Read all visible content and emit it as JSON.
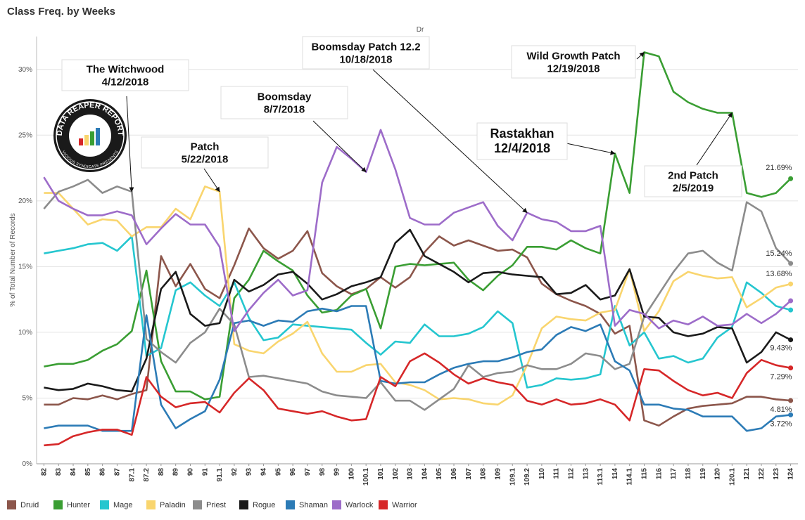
{
  "title": "Class Freq. by Weeks",
  "chart_data": {
    "type": "line",
    "title": "Class Freq. by Weeks",
    "header_label": "Dr",
    "ylabel": "% of Total Number of Records",
    "xlabel": "",
    "ylim": [
      0,
      32.5
    ],
    "yticks": [
      0,
      5,
      10,
      15,
      20,
      25,
      30
    ],
    "ytick_labels": [
      "0%",
      "5%",
      "10%",
      "15%",
      "20%",
      "25%",
      "30%"
    ],
    "grid": "horizontal",
    "legend_position": "bottom",
    "categories": [
      "82",
      "83",
      "84",
      "85",
      "86",
      "87",
      "87.1",
      "87.2",
      "88",
      "89",
      "90",
      "91",
      "91.1",
      "92",
      "93",
      "94",
      "95",
      "96",
      "97",
      "98",
      "99",
      "100",
      "100.1",
      "101",
      "102",
      "103",
      "104",
      "105",
      "106",
      "107",
      "108",
      "109",
      "109.1",
      "109.2",
      "110",
      "111",
      "112",
      "113",
      "113.1",
      "114",
      "114.1",
      "115",
      "116",
      "117",
      "118",
      "119",
      "120",
      "120.1",
      "121",
      "122",
      "123",
      "124"
    ],
    "series": [
      {
        "name": "Druid",
        "color": "#8c564b",
        "values": [
          4.5,
          4.5,
          5.0,
          4.9,
          5.2,
          4.9,
          5.3,
          5.6,
          15.8,
          13.5,
          15.2,
          13.3,
          12.6,
          15.1,
          17.9,
          16.4,
          15.6,
          16.2,
          17.7,
          14.5,
          13.5,
          12.9,
          13.3,
          14.2,
          13.4,
          14.2,
          16.1,
          17.3,
          16.6,
          17.0,
          16.6,
          16.2,
          16.3,
          15.7,
          13.7,
          12.9,
          12.4,
          12.0,
          11.4,
          9.9,
          10.5,
          3.3,
          2.9,
          3.6,
          4.2,
          4.4,
          4.5,
          4.6,
          5.1,
          5.1,
          4.9,
          4.81
        ]
      },
      {
        "name": "Hunter",
        "color": "#3a9e33",
        "values": [
          7.4,
          7.6,
          7.6,
          7.9,
          8.6,
          9.1,
          10.1,
          14.7,
          7.8,
          5.5,
          5.5,
          4.9,
          5.1,
          12.6,
          14.0,
          16.2,
          15.4,
          14.7,
          12.8,
          11.5,
          11.7,
          12.8,
          13.3,
          10.3,
          15.0,
          15.2,
          15.1,
          15.2,
          15.3,
          14.0,
          13.2,
          14.3,
          15.1,
          16.5,
          16.5,
          16.3,
          17.0,
          16.4,
          16.0,
          23.6,
          20.6,
          31.3,
          31.0,
          28.3,
          27.5,
          27.0,
          26.7,
          26.7,
          20.6,
          20.3,
          20.6,
          21.69
        ]
      },
      {
        "name": "Mage",
        "color": "#25c6cf",
        "values": [
          16.0,
          16.2,
          16.4,
          16.7,
          16.8,
          16.2,
          17.3,
          8.2,
          8.8,
          13.2,
          13.8,
          12.8,
          12.0,
          13.8,
          11.1,
          9.4,
          9.6,
          10.6,
          10.5,
          10.4,
          10.3,
          10.2,
          9.2,
          8.3,
          9.3,
          9.2,
          10.6,
          9.7,
          9.7,
          9.9,
          10.4,
          11.6,
          10.7,
          5.8,
          6.0,
          6.5,
          6.4,
          6.5,
          6.8,
          12.0,
          9.0,
          10.0,
          8.0,
          8.2,
          7.7,
          8.0,
          9.6,
          10.4,
          13.8,
          13.0,
          12.0,
          11.7
        ]
      },
      {
        "name": "Paladin",
        "color": "#f9d56e",
        "values": [
          20.6,
          20.6,
          19.4,
          18.2,
          18.6,
          18.5,
          17.3,
          18.0,
          18.0,
          19.4,
          18.6,
          21.1,
          20.7,
          9.1,
          8.6,
          8.4,
          9.3,
          9.9,
          10.8,
          8.4,
          7.0,
          7.0,
          7.5,
          7.6,
          6.2,
          6.0,
          5.6,
          4.9,
          5.0,
          4.9,
          4.6,
          4.5,
          5.2,
          7.5,
          10.3,
          11.2,
          11.0,
          10.9,
          11.5,
          11.7,
          14.8,
          10.1,
          11.6,
          13.9,
          14.6,
          14.3,
          14.1,
          14.2,
          11.9,
          12.6,
          13.4,
          13.68
        ]
      },
      {
        "name": "Priest",
        "color": "#8c8c8c",
        "values": [
          19.4,
          20.7,
          21.1,
          21.6,
          20.6,
          21.1,
          20.7,
          9.5,
          8.5,
          7.7,
          9.2,
          10.0,
          11.8,
          10.6,
          6.6,
          6.7,
          6.5,
          6.3,
          6.1,
          5.5,
          5.2,
          5.1,
          5.0,
          6.2,
          4.8,
          4.8,
          4.1,
          4.9,
          5.7,
          7.5,
          6.6,
          6.9,
          7.0,
          7.5,
          7.2,
          7.2,
          7.6,
          8.4,
          8.2,
          7.2,
          7.6,
          11.2,
          12.9,
          14.6,
          16.0,
          16.2,
          15.3,
          14.7,
          19.9,
          19.2,
          16.4,
          15.24
        ]
      },
      {
        "name": "Rogue",
        "color": "#1a1a1a",
        "values": [
          5.8,
          5.6,
          5.7,
          6.1,
          5.9,
          5.6,
          5.5,
          8.0,
          13.3,
          14.6,
          11.4,
          10.5,
          10.7,
          14.0,
          13.1,
          13.6,
          14.4,
          14.6,
          13.7,
          12.5,
          12.9,
          13.5,
          13.8,
          14.2,
          16.8,
          17.8,
          15.8,
          15.2,
          14.6,
          13.8,
          14.5,
          14.6,
          14.4,
          14.3,
          14.2,
          12.9,
          13.0,
          13.6,
          12.5,
          12.8,
          14.8,
          11.2,
          11.1,
          10.0,
          9.7,
          9.9,
          10.4,
          10.3,
          7.7,
          8.5,
          10.0,
          9.43
        ]
      },
      {
        "name": "Shaman",
        "color": "#2c7bb6",
        "values": [
          2.7,
          2.9,
          2.9,
          2.9,
          2.5,
          2.5,
          2.5,
          11.3,
          4.5,
          2.7,
          3.4,
          4.0,
          6.4,
          10.7,
          10.9,
          10.5,
          10.9,
          10.8,
          11.6,
          11.8,
          11.6,
          12.0,
          12.0,
          6.3,
          6.1,
          6.2,
          6.2,
          6.8,
          7.3,
          7.6,
          7.8,
          7.8,
          8.1,
          8.5,
          8.7,
          9.8,
          10.4,
          10.1,
          10.6,
          7.8,
          7.1,
          4.5,
          4.5,
          4.2,
          4.1,
          3.6,
          3.6,
          3.6,
          2.5,
          2.7,
          3.6,
          3.72
        ]
      },
      {
        "name": "Warlock",
        "color": "#9d6cc9",
        "values": [
          21.8,
          20.0,
          19.4,
          18.9,
          18.9,
          19.2,
          18.9,
          16.7,
          17.9,
          19.0,
          18.2,
          18.2,
          16.5,
          10.1,
          11.7,
          13.0,
          14.0,
          12.8,
          13.2,
          21.4,
          24.1,
          23.2,
          22.2,
          25.4,
          22.4,
          18.7,
          18.2,
          18.2,
          19.1,
          19.5,
          19.9,
          18.1,
          17.0,
          19.1,
          18.6,
          18.4,
          17.7,
          17.7,
          18.1,
          10.5,
          11.7,
          11.4,
          10.3,
          10.9,
          10.6,
          11.2,
          10.5,
          10.6,
          11.4,
          10.7,
          11.4,
          12.4
        ]
      },
      {
        "name": "Warrior",
        "color": "#d62728",
        "values": [
          1.4,
          1.5,
          2.1,
          2.4,
          2.6,
          2.6,
          2.2,
          6.6,
          5.1,
          4.3,
          4.6,
          4.7,
          3.9,
          5.4,
          6.5,
          5.6,
          4.2,
          4.0,
          3.8,
          4.0,
          3.6,
          3.3,
          3.4,
          6.6,
          5.9,
          7.8,
          8.4,
          7.7,
          6.8,
          6.1,
          6.5,
          6.2,
          6.0,
          4.8,
          4.5,
          4.9,
          4.5,
          4.6,
          4.9,
          4.5,
          3.3,
          7.2,
          7.1,
          6.3,
          5.6,
          5.2,
          5.4,
          5.0,
          6.9,
          7.9,
          7.5,
          7.29
        ]
      }
    ],
    "end_labels": [
      {
        "series": "Hunter",
        "text": "21.69%"
      },
      {
        "series": "Priest",
        "text": "15.24%"
      },
      {
        "series": "Paladin",
        "text": "13.68%"
      },
      {
        "series": "Rogue",
        "text": "9.43%"
      },
      {
        "series": "Warrior",
        "text": "7.29%"
      },
      {
        "series": "Druid",
        "text": "4.81%"
      },
      {
        "series": "Shaman",
        "text": "3.72%"
      }
    ],
    "annotations": [
      {
        "lines": [
          "The Witchwood",
          "4/12/2018"
        ],
        "target_category": "87.1",
        "target_series": "Priest"
      },
      {
        "lines": [
          "Patch",
          "5/22/2018"
        ],
        "target_category": "91.1",
        "target_series": "Paladin"
      },
      {
        "lines": [
          "Boomsday",
          "8/7/2018"
        ],
        "target_category": "100.1",
        "target_series": "Warlock"
      },
      {
        "lines": [
          "Boomsday Patch 12.2",
          "10/18/2018"
        ],
        "target_category": "109.2",
        "target_series": "Warlock"
      },
      {
        "lines": [
          "Rastakhan",
          "12/4/2018"
        ],
        "target_category": "114",
        "target_series": "Hunter"
      },
      {
        "lines": [
          "Wild Growth Patch",
          "12/19/2018"
        ],
        "target_category": "115",
        "target_series": "Hunter"
      },
      {
        "lines": [
          "2nd Patch",
          "2/5/2019"
        ],
        "target_category": "120.1",
        "target_series": "Hunter"
      }
    ]
  },
  "logo": {
    "text_top": "DATA REAPER REPORT",
    "text_bottom": "VICIOUS SYNDICATE PRESENTS"
  }
}
